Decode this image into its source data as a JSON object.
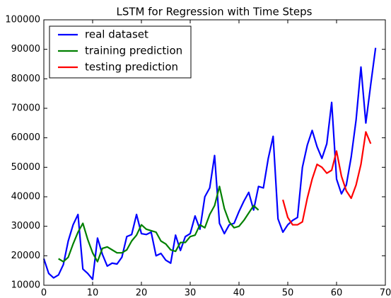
{
  "chart_data": {
    "type": "line",
    "title": "LSTM for Regression with Time Steps",
    "x": [
      0,
      1,
      2,
      3,
      4,
      5,
      6,
      7,
      8,
      9,
      10,
      11,
      12,
      13,
      14,
      15,
      16,
      17,
      18,
      19,
      20,
      21,
      22,
      23,
      24,
      25,
      26,
      27,
      28,
      29,
      30,
      31,
      32,
      33,
      34,
      35,
      36,
      37,
      38,
      39,
      40,
      41,
      42,
      43,
      44,
      45,
      46,
      47,
      48,
      49,
      50,
      51,
      52,
      53,
      54,
      55,
      56,
      57,
      58,
      59,
      60,
      61,
      62,
      63,
      64,
      65,
      66,
      67,
      68
    ],
    "series": [
      {
        "name": "real dataset",
        "color": "#0000ff",
        "values": [
          19000,
          14000,
          12500,
          13500,
          17000,
          25000,
          30500,
          34000,
          15500,
          14000,
          12000,
          26000,
          20500,
          16500,
          17500,
          17200,
          19500,
          26500,
          27200,
          34000,
          27500,
          27200,
          28000,
          20000,
          20800,
          18500,
          17500,
          27000,
          21800,
          26500,
          27500,
          33500,
          29000,
          40000,
          43000,
          54000,
          31000,
          27500,
          30500,
          31000,
          35000,
          38500,
          41500,
          35500,
          43500,
          43000,
          53000,
          60500,
          32500,
          28000,
          30500,
          32000,
          33000,
          50000,
          57500,
          62500,
          57000,
          53000,
          58000,
          72000,
          46000,
          41000,
          44000,
          53500,
          66000,
          84000,
          65000,
          78000,
          90500
        ]
      },
      {
        "name": "training prediction",
        "color": "#008000",
        "values": [
          null,
          null,
          null,
          19000,
          18000,
          19500,
          24000,
          28000,
          31000,
          25500,
          21000,
          18000,
          22500,
          23000,
          22000,
          21000,
          21000,
          22000,
          25000,
          27000,
          30500,
          29000,
          28500,
          28000,
          25000,
          24000,
          22000,
          21500,
          24500,
          24500,
          26500,
          27000,
          30500,
          29500,
          34000,
          37000,
          43500,
          36000,
          31500,
          29500,
          30000,
          32000,
          34500,
          37000,
          35500,
          null,
          null,
          null,
          null,
          null,
          null,
          null,
          null,
          null,
          null,
          null,
          null,
          null,
          null,
          null,
          null,
          null,
          null,
          null,
          null,
          null,
          null,
          null,
          null
        ]
      },
      {
        "name": "testing prediction",
        "color": "#ff0000",
        "values": [
          null,
          null,
          null,
          null,
          null,
          null,
          null,
          null,
          null,
          null,
          null,
          null,
          null,
          null,
          null,
          null,
          null,
          null,
          null,
          null,
          null,
          null,
          null,
          null,
          null,
          null,
          null,
          null,
          null,
          null,
          null,
          null,
          null,
          null,
          null,
          null,
          null,
          null,
          null,
          null,
          null,
          null,
          null,
          null,
          null,
          null,
          null,
          null,
          null,
          39000,
          33000,
          30500,
          30500,
          31500,
          39500,
          46000,
          51000,
          50000,
          48000,
          49000,
          55500,
          47000,
          42000,
          39500,
          44000,
          51000,
          62000,
          58000,
          null
        ]
      }
    ],
    "xlim": [
      0,
      70
    ],
    "xticks": [
      0,
      10,
      20,
      30,
      40,
      50,
      60,
      70
    ],
    "ylim": [
      10000,
      100000
    ],
    "yticks": [
      10000,
      20000,
      30000,
      40000,
      50000,
      60000,
      70000,
      80000,
      90000,
      100000
    ],
    "legend": "upper left"
  }
}
